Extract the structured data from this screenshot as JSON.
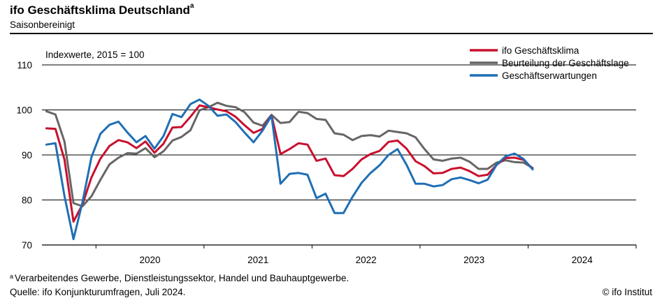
{
  "header": {
    "title": "ifo Geschäftsklima Deutschland",
    "title_marker": "a",
    "subtitle": "Saisonbereinigt"
  },
  "footer": {
    "footnote_marker": "a",
    "footnote": "Verarbeitendes Gewerbe, Dienstleistungssektor, Handel und Bauhauptgewerbe.",
    "source": "Quelle: ifo Konjunkturumfragen, Juli 2024.",
    "copyright": "© ifo Institut"
  },
  "chart_data": {
    "type": "line",
    "annotation": "Indexwerte, 2015 = 100",
    "ylim": [
      70,
      110
    ],
    "yticks": [
      70,
      80,
      90,
      100,
      110
    ],
    "x_start": "2019-07",
    "x_end": "2024-12",
    "year_labels": [
      "2020",
      "2021",
      "2022",
      "2023",
      "2024"
    ],
    "grid": "horizontal",
    "legend": "top-right",
    "series": [
      {
        "name": "ifo Geschäftsklima",
        "color": "#c8102e",
        "values": [
          95.9,
          95.8,
          89.0,
          75.2,
          79.0,
          85.0,
          89.2,
          92.0,
          93.3,
          92.8,
          91.5,
          93.0,
          90.5,
          92.5,
          96.1,
          96.2,
          98.5,
          101.0,
          100.6,
          100.1,
          99.7,
          98.5,
          96.6,
          94.9,
          95.8,
          98.8,
          90.2,
          91.3,
          92.6,
          92.3,
          88.7,
          89.2,
          85.5,
          85.3,
          86.9,
          89.0,
          90.2,
          90.9,
          92.9,
          93.2,
          91.4,
          88.6,
          87.5,
          85.9,
          86.0,
          86.9,
          87.2,
          86.4,
          85.3,
          85.6,
          87.8,
          89.3,
          89.4,
          88.9,
          87.0
        ]
      },
      {
        "name": "Beurteilung der Geschäftslage",
        "color": "#666666",
        "values": [
          99.7,
          99.0,
          93.0,
          79.3,
          78.6,
          80.8,
          84.5,
          87.9,
          89.4,
          90.4,
          90.3,
          91.5,
          89.5,
          90.8,
          93.2,
          94.0,
          95.5,
          99.9,
          100.6,
          101.6,
          100.9,
          100.6,
          99.5,
          97.2,
          96.5,
          98.9,
          97.1,
          97.3,
          99.6,
          99.3,
          98.0,
          97.8,
          94.8,
          94.5,
          93.3,
          94.2,
          94.4,
          94.1,
          95.4,
          95.1,
          94.8,
          93.9,
          91.3,
          89.0,
          88.7,
          89.2,
          89.4,
          88.5,
          86.9,
          86.9,
          88.3,
          88.8,
          88.4,
          88.3,
          87.1
        ]
      },
      {
        "name": "Geschäftserwartungen",
        "color": "#1f6fb5",
        "values": [
          92.3,
          92.6,
          80.9,
          71.3,
          79.5,
          89.5,
          94.7,
          96.7,
          97.4,
          95.0,
          92.8,
          94.2,
          91.4,
          94.2,
          99.1,
          98.4,
          101.3,
          102.3,
          100.9,
          98.7,
          99.0,
          97.3,
          95.0,
          92.8,
          95.4,
          98.7,
          83.6,
          85.8,
          86.0,
          85.6,
          80.4,
          81.4,
          77.1,
          77.1,
          80.7,
          83.8,
          86.0,
          87.7,
          90.0,
          91.3,
          87.8,
          83.6,
          83.6,
          83.0,
          83.3,
          84.6,
          85.0,
          84.4,
          83.7,
          84.5,
          87.8,
          89.7,
          90.3,
          89.1,
          86.8
        ]
      }
    ]
  }
}
